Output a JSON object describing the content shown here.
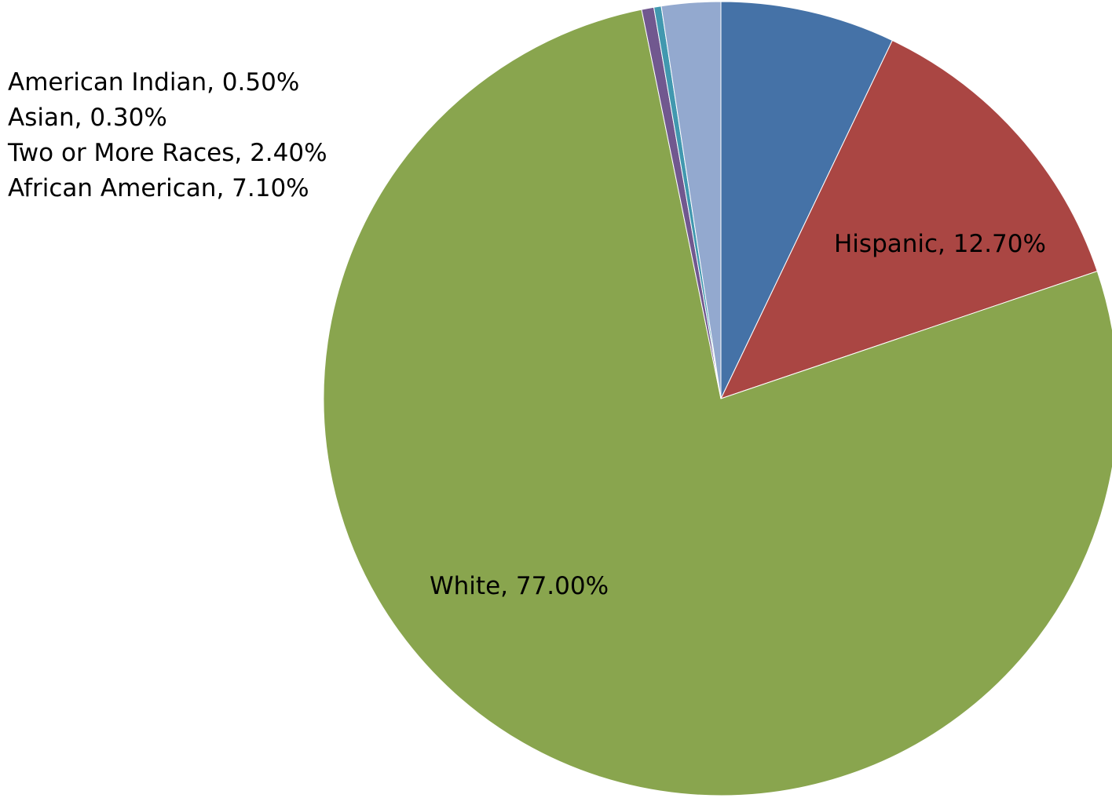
{
  "chart_data": {
    "type": "pie",
    "title": "",
    "start_angle_deg": 0,
    "direction": "clockwise",
    "legend": "none",
    "slices": [
      {
        "label": "African American",
        "value": 7.1,
        "color": "#4572A7",
        "text": "African American, 7.10%"
      },
      {
        "label": "Hispanic",
        "value": 12.7,
        "color": "#AA4643",
        "text": "Hispanic, 12.70%"
      },
      {
        "label": "White",
        "value": 77.0,
        "color": "#89A54E",
        "text": "White, 77.00%"
      },
      {
        "label": "American Indian",
        "value": 0.5,
        "color": "#71588F",
        "text": "American Indian, 0.50%"
      },
      {
        "label": "Asian",
        "value": 0.3,
        "color": "#4198AF",
        "text": "Asian, 0.30%"
      },
      {
        "label": "Two or More Races",
        "value": 2.4,
        "color": "#93A9CF",
        "text": "Two or More Races, 2.40%"
      }
    ]
  }
}
